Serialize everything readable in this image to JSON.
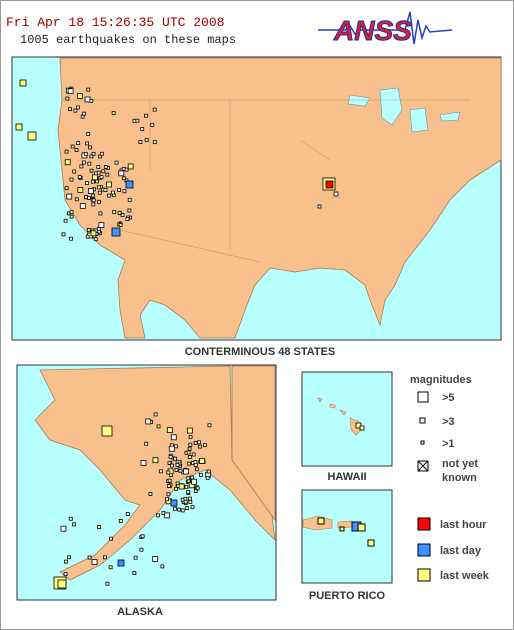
{
  "header": {
    "timestamp": "Fri Apr 18 15:26:35 UTC 2008",
    "count": "1005 earthquakes on these maps",
    "logo": "ANSS"
  },
  "maps": {
    "conus": "CONTERMINOUS 48 STATES",
    "alaska": "ALASKA",
    "hawaii": "HAWAII",
    "puerto_rico": "PUERTO RICO"
  },
  "legend": {
    "title": "magnitudes",
    "sizes": [
      ">5",
      ">3",
      ">1"
    ],
    "unknown": [
      "not yet",
      "known"
    ],
    "times": [
      "last hour",
      "last day",
      "last week"
    ]
  }
}
